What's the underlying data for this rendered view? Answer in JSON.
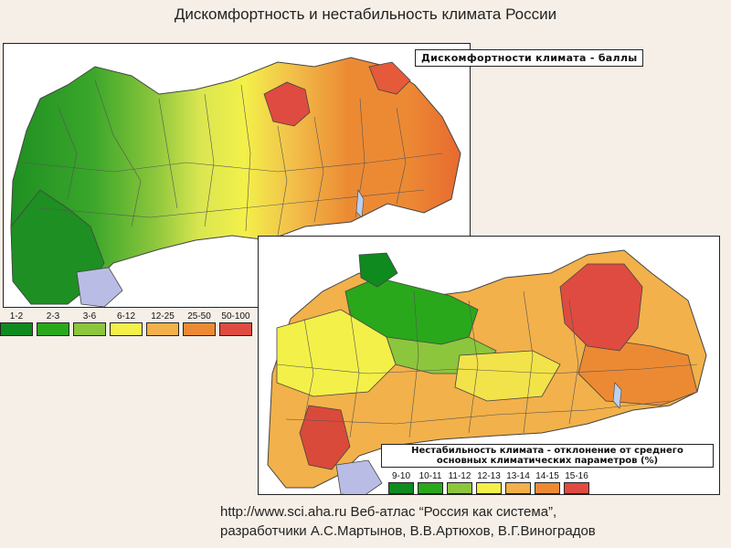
{
  "title": "Дискомфортность и нестабильность климата России",
  "map1": {
    "caption": "Дискомфортности климата - баллы",
    "legend": [
      {
        "label": "1-2",
        "color": "#0f8a1e"
      },
      {
        "label": "2-3",
        "color": "#29a81c"
      },
      {
        "label": "3-6",
        "color": "#8cc63c"
      },
      {
        "label": "6-12",
        "color": "#f3f04a"
      },
      {
        "label": "12-25",
        "color": "#f2b14a"
      },
      {
        "label": "25-50",
        "color": "#ec8a34"
      },
      {
        "label": "50-100",
        "color": "#df4b40"
      }
    ]
  },
  "map2": {
    "caption_line1": "Нестабильность климата - отклонение от среднего",
    "caption_line2": "основных климатических параметров (%)",
    "legend": [
      {
        "label": "9-10",
        "color": "#0f8a1e"
      },
      {
        "label": "10-11",
        "color": "#29a81c"
      },
      {
        "label": "11-12",
        "color": "#8cc63c"
      },
      {
        "label": "12-13",
        "color": "#f3f04a"
      },
      {
        "label": "13-14",
        "color": "#f2b14a"
      },
      {
        "label": "14-15",
        "color": "#ec8a34"
      },
      {
        "label": "15-16",
        "color": "#df4b40"
      }
    ]
  },
  "source": {
    "line1": "http://www.sci.aha.ru Веб-атлас “Россия как система”,",
    "line2": "разработчики А.С.Мартынов, В.В.Артюхов, В.Г.Виноградов"
  }
}
